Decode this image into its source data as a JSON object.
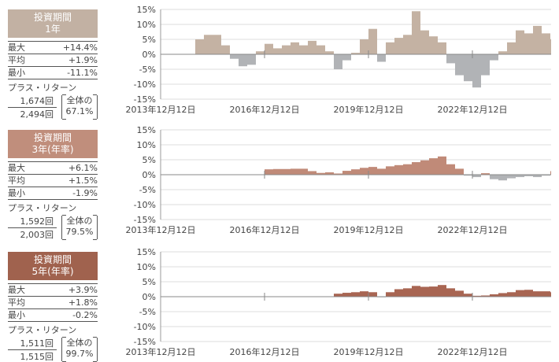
{
  "panels": [
    {
      "title_line1": "投資期間",
      "title_line2": "1年",
      "color": "#c2b1a3",
      "max_label": "最大",
      "max": "+14.4%",
      "avg_label": "平均",
      "avg": "+1.9%",
      "min_label": "最小",
      "min": "-11.1%",
      "plus_label": "プラス・リターン",
      "plus_count": "1,674回",
      "total_count": "2,494回",
      "ratio_label": "全体の",
      "ratio": "67.1%"
    },
    {
      "title_line1": "投資期間",
      "title_line2": "3年(年率)",
      "color": "#c08e7c",
      "max_label": "最大",
      "max": "+6.1%",
      "avg_label": "平均",
      "avg": "+1.5%",
      "min_label": "最小",
      "min": "-1.9%",
      "plus_label": "プラス・リターン",
      "plus_count": "1,592回",
      "total_count": "2,003回",
      "ratio_label": "全体の",
      "ratio": "79.5%"
    },
    {
      "title_line1": "投資期間",
      "title_line2": "5年(年率)",
      "color": "#a0624e",
      "max_label": "最大",
      "max": "+3.9%",
      "avg_label": "平均",
      "avg": "+1.8%",
      "min_label": "最小",
      "min": "-0.2%",
      "plus_label": "プラス・リターン",
      "plus_count": "1,511回",
      "total_count": "1,515回",
      "ratio_label": "全体の",
      "ratio": "99.7%"
    }
  ],
  "chart_data": [
    {
      "type": "bar",
      "ylim": [
        -15,
        15
      ],
      "yticks": [
        "15%",
        "10%",
        "5%",
        "0%",
        "-5%",
        "-10%",
        "-15%"
      ],
      "xlim": [
        "2013-12-12",
        "2025-03"
      ],
      "xticks": [
        "2013年12月12日",
        "2016年12月12日",
        "2019年12月12日",
        "2022年12月12日"
      ],
      "grid": true,
      "positive_color": "#c4b2a3",
      "negative_color": "#b1b3b6",
      "points": [
        [
          "2014-12",
          5
        ],
        [
          "2015-03",
          6.5
        ],
        [
          "2015-06",
          6.5
        ],
        [
          "2015-09",
          3
        ],
        [
          "2015-12",
          -1.5
        ],
        [
          "2016-03",
          -4
        ],
        [
          "2016-06",
          -3.5
        ],
        [
          "2016-09",
          1
        ],
        [
          "2016-12",
          3.5
        ],
        [
          "2017-03",
          2
        ],
        [
          "2017-06",
          3
        ],
        [
          "2017-09",
          4
        ],
        [
          "2017-12",
          3
        ],
        [
          "2018-03",
          4.5
        ],
        [
          "2018-06",
          3
        ],
        [
          "2018-09",
          1
        ],
        [
          "2018-12",
          -5
        ],
        [
          "2019-03",
          -2
        ],
        [
          "2019-06",
          0.5
        ],
        [
          "2019-09",
          5
        ],
        [
          "2019-12",
          8.5
        ],
        [
          "2020-03",
          -2.5
        ],
        [
          "2020-06",
          4
        ],
        [
          "2020-09",
          5.5
        ],
        [
          "2020-12",
          6.5
        ],
        [
          "2021-03",
          14.4
        ],
        [
          "2021-06",
          8
        ],
        [
          "2021-09",
          6
        ],
        [
          "2021-12",
          4
        ],
        [
          "2022-03",
          -3
        ],
        [
          "2022-06",
          -7
        ],
        [
          "2022-09",
          -9
        ],
        [
          "2022-12",
          -11.1
        ],
        [
          "2023-03",
          -7
        ],
        [
          "2023-06",
          -2
        ],
        [
          "2023-09",
          1
        ],
        [
          "2023-12",
          4
        ],
        [
          "2024-03",
          8
        ],
        [
          "2024-06",
          7
        ],
        [
          "2024-09",
          9.5
        ],
        [
          "2024-12",
          7
        ],
        [
          "2025-03",
          5
        ]
      ]
    },
    {
      "type": "bar",
      "ylim": [
        -15,
        15
      ],
      "yticks": [
        "15%",
        "10%",
        "5%",
        "0%",
        "-5%",
        "-10%",
        "-15%"
      ],
      "xlim": [
        "2013-12-12",
        "2025-03"
      ],
      "xticks": [
        "2013年12月12日",
        "2016年12月12日",
        "2019年12月12日",
        "2022年12月12日"
      ],
      "grid": true,
      "positive_color": "#c08a78",
      "negative_color": "#b1b3b6",
      "points": [
        [
          "2016-12",
          1.8
        ],
        [
          "2017-03",
          1.9
        ],
        [
          "2017-06",
          1.9
        ],
        [
          "2017-09",
          2.0
        ],
        [
          "2017-12",
          2.0
        ],
        [
          "2018-03",
          1.2
        ],
        [
          "2018-06",
          0.6
        ],
        [
          "2018-09",
          0.8
        ],
        [
          "2018-12",
          0.4
        ],
        [
          "2019-03",
          1.3
        ],
        [
          "2019-06",
          1.8
        ],
        [
          "2019-09",
          2.3
        ],
        [
          "2019-12",
          2.6
        ],
        [
          "2020-03",
          2.0
        ],
        [
          "2020-06",
          2.8
        ],
        [
          "2020-09",
          3.2
        ],
        [
          "2020-12",
          3.5
        ],
        [
          "2021-03",
          4.2
        ],
        [
          "2021-06",
          4.8
        ],
        [
          "2021-09",
          5.5
        ],
        [
          "2021-12",
          6.1
        ],
        [
          "2022-03",
          3.5
        ],
        [
          "2022-06",
          2.0
        ],
        [
          "2022-09",
          -0.3
        ],
        [
          "2022-12",
          -0.8
        ],
        [
          "2023-03",
          0.5
        ],
        [
          "2023-06",
          -1.5
        ],
        [
          "2023-09",
          -1.9
        ],
        [
          "2023-12",
          -1.2
        ],
        [
          "2024-03",
          -0.8
        ],
        [
          "2024-06",
          -0.5
        ],
        [
          "2024-09",
          -0.8
        ],
        [
          "2024-12",
          -0.3
        ],
        [
          "2025-03",
          1.2
        ]
      ]
    },
    {
      "type": "bar",
      "ylim": [
        -15,
        15
      ],
      "yticks": [
        "15%",
        "10%",
        "5%",
        "0%",
        "-5%",
        "-10%",
        "-15%"
      ],
      "xlim": [
        "2013-12-12",
        "2025-03"
      ],
      "xticks": [
        "2013年12月12日",
        "2016年12月12日",
        "2019年12月12日",
        "2022年12月12日"
      ],
      "grid": true,
      "positive_color": "#a86552",
      "negative_color": "#b1b3b6",
      "points": [
        [
          "2018-12",
          1.0
        ],
        [
          "2019-03",
          1.3
        ],
        [
          "2019-06",
          1.5
        ],
        [
          "2019-09",
          1.8
        ],
        [
          "2019-12",
          1.5
        ],
        [
          "2020-03",
          -0.2
        ],
        [
          "2020-06",
          1.5
        ],
        [
          "2020-09",
          2.5
        ],
        [
          "2020-12",
          2.8
        ],
        [
          "2021-03",
          3.6
        ],
        [
          "2021-06",
          3.3
        ],
        [
          "2021-09",
          3.4
        ],
        [
          "2021-12",
          3.9
        ],
        [
          "2022-03",
          2.8
        ],
        [
          "2022-06",
          2.0
        ],
        [
          "2022-09",
          1.0
        ],
        [
          "2022-12",
          0.3
        ],
        [
          "2023-03",
          0.4
        ],
        [
          "2023-06",
          0.8
        ],
        [
          "2023-09",
          1.2
        ],
        [
          "2023-12",
          1.5
        ],
        [
          "2024-03",
          2.2
        ],
        [
          "2024-06",
          2.3
        ],
        [
          "2024-09",
          1.8
        ],
        [
          "2024-12",
          1.8
        ],
        [
          "2025-03",
          1.5
        ]
      ]
    }
  ]
}
